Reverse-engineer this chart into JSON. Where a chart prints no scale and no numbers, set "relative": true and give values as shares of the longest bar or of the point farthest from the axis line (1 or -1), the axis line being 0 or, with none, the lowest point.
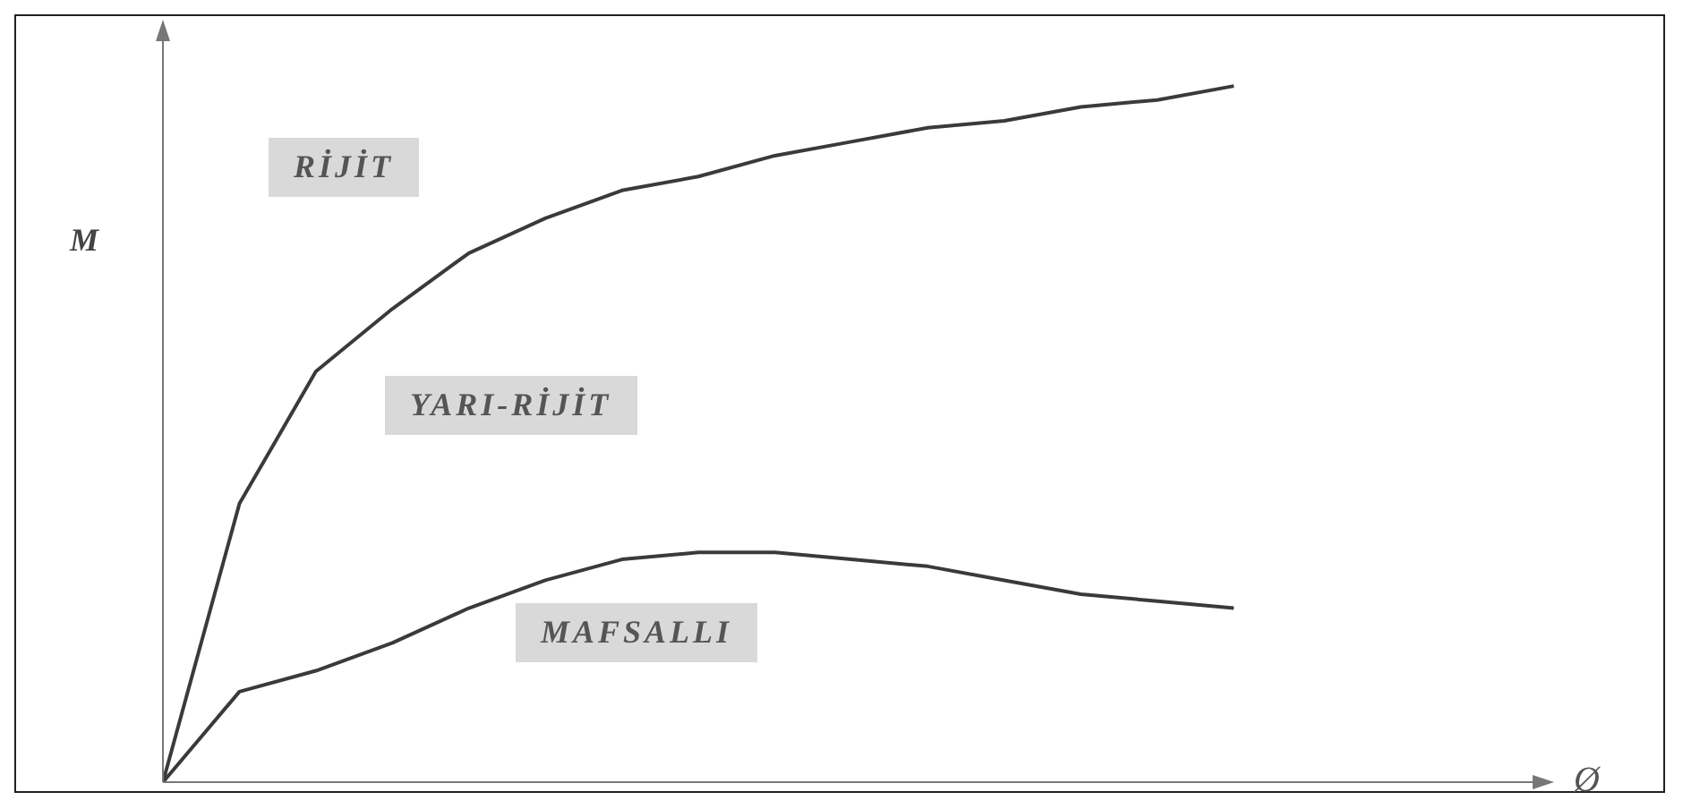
{
  "chart_data": {
    "type": "line",
    "relative": true,
    "xlabel": "Ø",
    "ylabel": "M",
    "categories": [
      null,
      null,
      null,
      null,
      null,
      null,
      null,
      null,
      null,
      null,
      null,
      null,
      null,
      null,
      null,
      null,
      null,
      null,
      null
    ],
    "series": [
      {
        "color": "#3a3a3a",
        "values": [
          0,
          0.4,
          0.59,
          0.68,
          0.76,
          0.81,
          0.85,
          0.87,
          0.9,
          0.92,
          0.94,
          0.95,
          0.97,
          0.98,
          1,
          null,
          null,
          null,
          null
        ]
      },
      {
        "color": "#3a3a3a",
        "values": [
          0,
          0.13,
          0.16,
          0.2,
          0.25,
          0.29,
          0.32,
          0.33,
          0.33,
          0.32,
          0.31,
          0.29,
          0.27,
          0.26,
          0.25,
          null,
          null,
          null,
          null
        ]
      }
    ],
    "annotations": [
      "RİJİT",
      "YARI-RİJİT",
      "MAFSALLI"
    ],
    "marker": "none",
    "grid": false,
    "legend": false
  }
}
